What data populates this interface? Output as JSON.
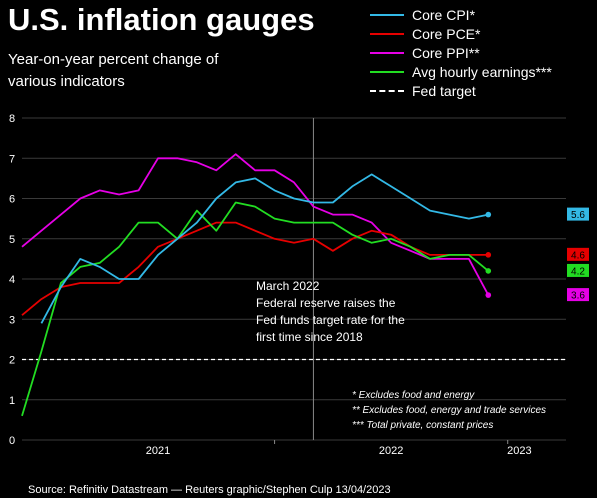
{
  "title": "U.S. inflation gauges",
  "subtitle": "Year-on-year percent change of various indicators",
  "source": "Source: Refinitiv Datastream — Reuters graphic/Stephen Culp 13/04/2023",
  "annotation": [
    "March 2022",
    "Federal reserve raises the",
    "Fed funds target rate for the",
    "first time since 2018"
  ],
  "footnotes": [
    "* Excludes food and energy",
    "** Excludes food, energy and trade services",
    "*** Total private, constant prices"
  ],
  "legend": [
    {
      "label": "Core CPI*",
      "color": "#33b9e6",
      "style": "solid"
    },
    {
      "label": "Core PCE*",
      "color": "#e60000",
      "style": "solid"
    },
    {
      "label": "Core PPI**",
      "color": "#e600e6",
      "style": "solid"
    },
    {
      "label": "Avg hourly earnings***",
      "color": "#22dd22",
      "style": "solid"
    },
    {
      "label": "Fed target",
      "color": "#ffffff",
      "style": "dashed"
    }
  ],
  "chart_data": {
    "type": "line",
    "x_axis_labels": [
      "2021",
      "2022",
      "2023"
    ],
    "y_ticks": [
      0,
      1,
      2,
      3,
      4,
      5,
      6,
      7,
      8
    ],
    "ylim": [
      0,
      8
    ],
    "grid": true,
    "reference_line": {
      "name": "Fed target",
      "y": 2
    },
    "event_line": {
      "x": "2022-03"
    },
    "x": [
      "2020-12",
      "2021-01",
      "2021-02",
      "2021-03",
      "2021-04",
      "2021-05",
      "2021-06",
      "2021-07",
      "2021-08",
      "2021-09",
      "2021-10",
      "2021-11",
      "2021-12",
      "2022-01",
      "2022-02",
      "2022-03",
      "2022-04",
      "2022-05",
      "2022-06",
      "2022-07",
      "2022-08",
      "2022-09",
      "2022-10",
      "2022-11",
      "2022-12",
      "2023-01",
      "2023-02",
      "2023-03"
    ],
    "series": [
      {
        "name": "Core CPI*",
        "color": "#33b9e6",
        "end_label": "5.6",
        "values": [
          null,
          2.9,
          3.8,
          4.5,
          4.3,
          4.0,
          4.0,
          4.6,
          5.0,
          5.4,
          6.0,
          6.4,
          6.5,
          6.2,
          6.0,
          5.9,
          5.9,
          6.3,
          6.6,
          6.3,
          6.0,
          5.7,
          5.6,
          5.5,
          5.6,
          null,
          null,
          null
        ]
      },
      {
        "name": "Core PCE*",
        "color": "#e60000",
        "end_label": "4.6",
        "values": [
          null,
          null,
          null,
          null,
          null,
          null,
          null,
          null,
          null,
          null,
          null,
          null,
          null,
          null,
          null,
          null,
          null,
          null,
          null,
          null,
          null,
          null,
          null,
          null,
          null,
          null,
          null,
          null
        ]
      },
      {
        "name": "Core PPI**",
        "color": "#e600e6",
        "end_label": "3.6",
        "values": [
          null,
          null,
          null,
          null,
          null,
          null,
          null,
          null,
          null,
          null,
          null,
          null,
          null,
          null,
          null,
          null,
          null,
          null,
          null,
          null,
          null,
          null,
          null,
          null,
          null,
          null,
          null,
          null
        ]
      },
      {
        "name": "Avg hourly earnings***",
        "color": "#22dd22",
        "end_label": "4.2",
        "values": [
          null,
          null,
          null,
          null,
          null,
          null,
          null,
          null,
          null,
          null,
          null,
          null,
          null,
          null,
          null,
          null,
          null,
          null,
          null,
          null,
          null,
          null,
          null,
          null,
          null,
          null,
          null,
          null
        ]
      }
    ],
    "series_points": {
      "Core PCE*": [
        [
          "2020-12",
          3.1
        ],
        [
          "2021-01",
          3.5
        ],
        [
          "2021-02",
          3.8
        ],
        [
          "2021-03",
          3.9
        ],
        [
          "2021-04",
          3.9
        ],
        [
          "2021-05",
          3.9
        ],
        [
          "2021-06",
          4.3
        ],
        [
          "2021-07",
          4.8
        ],
        [
          "2021-08",
          5.0
        ],
        [
          "2021-09",
          5.2
        ],
        [
          "2021-10",
          5.4
        ],
        [
          "2021-11",
          5.4
        ],
        [
          "2022-01",
          5.0
        ],
        [
          "2022-02",
          4.9
        ],
        [
          "2022-03",
          5.0
        ],
        [
          "2022-04",
          4.7
        ],
        [
          "2022-05",
          5.0
        ],
        [
          "2022-06",
          5.2
        ],
        [
          "2022-07",
          5.1
        ],
        [
          "2022-08",
          4.8
        ],
        [
          "2022-09",
          4.6
        ],
        [
          "2022-10",
          4.6
        ],
        [
          "2022-11",
          4.6
        ],
        [
          "2022-12",
          4.6
        ]
      ],
      "Core PPI**": [
        [
          "2020-12",
          4.8
        ],
        [
          "2021-01",
          5.2
        ],
        [
          "2021-02",
          5.6
        ],
        [
          "2021-03",
          6.0
        ],
        [
          "2021-04",
          6.2
        ],
        [
          "2021-05",
          6.1
        ],
        [
          "2021-06",
          6.2
        ],
        [
          "2021-07",
          7.0
        ],
        [
          "2021-08",
          7.0
        ],
        [
          "2021-09",
          6.9
        ],
        [
          "2021-10",
          6.7
        ],
        [
          "2021-11",
          7.1
        ],
        [
          "2021-12",
          6.7
        ],
        [
          "2022-01",
          6.7
        ],
        [
          "2022-02",
          6.4
        ],
        [
          "2022-03",
          5.8
        ],
        [
          "2022-04",
          5.6
        ],
        [
          "2022-05",
          5.6
        ],
        [
          "2022-06",
          5.4
        ],
        [
          "2022-07",
          4.9
        ],
        [
          "2022-08",
          4.7
        ],
        [
          "2022-09",
          4.5
        ],
        [
          "2022-10",
          4.5
        ],
        [
          "2022-11",
          4.5
        ],
        [
          "2022-12",
          3.6
        ]
      ],
      "Avg hourly earnings***": [
        [
          "2020-12",
          0.6
        ],
        [
          "2021-01",
          2.2
        ],
        [
          "2021-02",
          3.9
        ],
        [
          "2021-03",
          4.3
        ],
        [
          "2021-04",
          4.4
        ],
        [
          "2021-05",
          4.8
        ],
        [
          "2021-06",
          5.4
        ],
        [
          "2021-07",
          5.4
        ],
        [
          "2021-08",
          5.0
        ],
        [
          "2021-09",
          5.7
        ],
        [
          "2021-10",
          5.2
        ],
        [
          "2021-11",
          5.9
        ],
        [
          "2021-12",
          5.8
        ],
        [
          "2022-01",
          5.5
        ],
        [
          "2022-02",
          5.4
        ],
        [
          "2022-03",
          5.4
        ],
        [
          "2022-04",
          5.4
        ],
        [
          "2022-05",
          5.1
        ],
        [
          "2022-06",
          4.9
        ],
        [
          "2022-07",
          5.0
        ],
        [
          "2022-08",
          4.8
        ],
        [
          "2022-09",
          4.5
        ],
        [
          "2022-10",
          4.6
        ],
        [
          "2022-11",
          4.6
        ],
        [
          "2022-12",
          4.2
        ]
      ]
    }
  }
}
